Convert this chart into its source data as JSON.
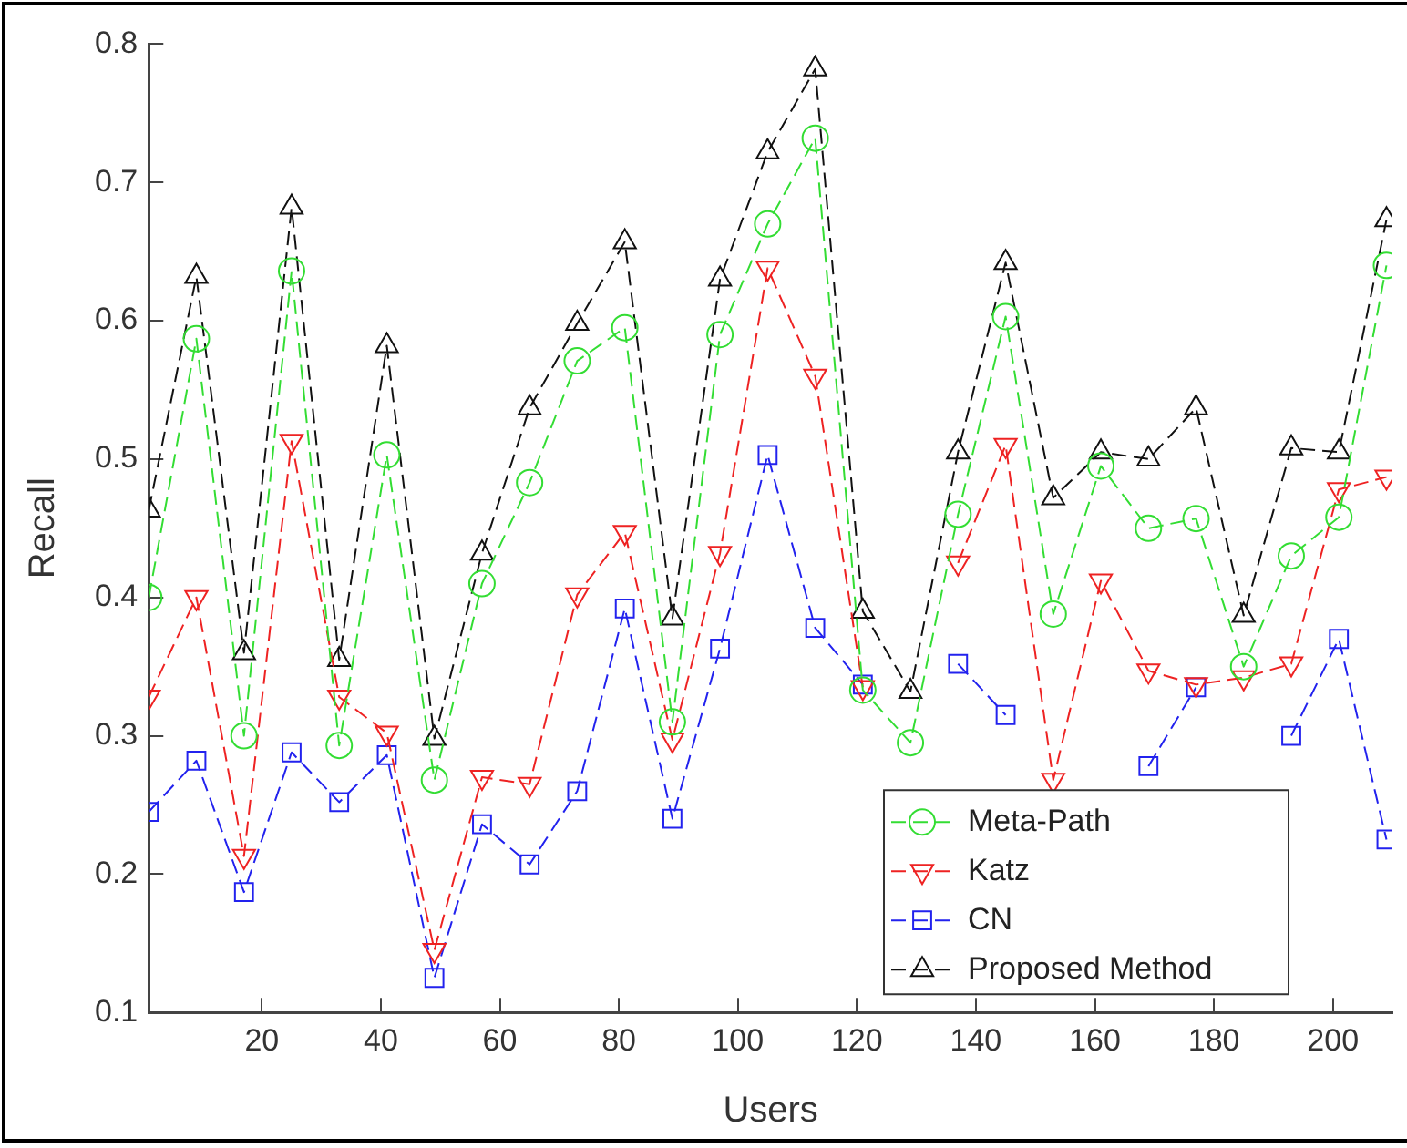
{
  "chart_data": {
    "type": "line",
    "xlabel": "Users",
    "ylabel": "Recall",
    "x": [
      1,
      9,
      17,
      25,
      33,
      41,
      49,
      57,
      65,
      73,
      81,
      89,
      97,
      105,
      113,
      121,
      129,
      137,
      145,
      153,
      161,
      169,
      177,
      185,
      193,
      201,
      209
    ],
    "series": [
      {
        "name": "Meta-Path",
        "color": "#33dd33",
        "marker": "circle",
        "values": [
          0.4,
          0.587,
          0.3,
          0.636,
          0.293,
          0.503,
          0.268,
          0.41,
          0.483,
          0.571,
          0.595,
          0.31,
          0.59,
          0.67,
          0.732,
          0.333,
          0.295,
          0.46,
          0.603,
          0.388,
          0.495,
          0.45,
          0.457,
          0.35,
          0.43,
          0.458,
          0.64
        ]
      },
      {
        "name": "Katz",
        "color": "#ee2222",
        "marker": "triangle-down",
        "values": [
          0.328,
          0.4,
          0.213,
          0.513,
          0.328,
          0.302,
          0.145,
          0.27,
          0.265,
          0.402,
          0.447,
          0.297,
          0.432,
          0.638,
          0.56,
          0.335,
          null,
          0.425,
          0.51,
          0.268,
          0.412,
          0.347,
          0.337,
          0.342,
          0.352,
          0.478,
          0.487
        ]
      },
      {
        "name": "CN",
        "color": "#2222ee",
        "marker": "square",
        "values": [
          0.245,
          0.282,
          0.187,
          0.288,
          0.252,
          0.286,
          0.125,
          0.236,
          0.207,
          0.26,
          0.392,
          0.24,
          0.363,
          0.503,
          0.378,
          0.337,
          null,
          0.352,
          0.315,
          null,
          null,
          0.278,
          0.335,
          null,
          0.3,
          0.37,
          0.225
        ]
      },
      {
        "name": "Proposed Method",
        "color": "#111111",
        "marker": "triangle",
        "values": [
          0.463,
          0.632,
          0.36,
          0.682,
          0.355,
          0.582,
          0.298,
          0.432,
          0.537,
          0.598,
          0.657,
          0.385,
          0.63,
          0.722,
          0.782,
          0.39,
          0.332,
          0.505,
          0.642,
          0.472,
          0.505,
          0.5,
          0.537,
          0.387,
          0.508,
          0.505,
          0.673
        ]
      }
    ],
    "xlim": [
      1,
      210
    ],
    "xticks": [
      20,
      40,
      60,
      80,
      100,
      120,
      140,
      160,
      180,
      200
    ],
    "ylim": [
      0.1,
      0.8
    ],
    "yticks": [
      0.1,
      0.2,
      0.3,
      0.4,
      0.5,
      0.6,
      0.7,
      0.8
    ],
    "grid": false,
    "legend": "bottom right",
    "line_style": "dashed"
  }
}
